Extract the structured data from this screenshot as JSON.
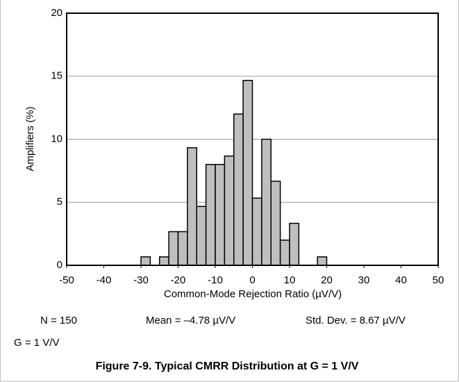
{
  "chart_data": {
    "type": "histogram",
    "title": "Figure 7-9. Typical CMRR Distribution at G = 1 V/V",
    "x_label": "Common-Mode Rejection Ratio (µV/V)",
    "y_label": "Amplifiers (%)",
    "annotations": [
      "N = 150",
      "Mean = –4.78 µV/V",
      "Std. Dev. = 8.67 µV/V",
      "G = 1 V/V"
    ],
    "bins": [
      -30,
      -27.5,
      -25,
      -22.5,
      -20,
      -17.5,
      -15,
      -12.5,
      -10,
      -7.5,
      -5,
      -2.5,
      0,
      2.5,
      5,
      7.5,
      10,
      12.5,
      15,
      17.5,
      20
    ],
    "values": [
      0.67,
      0,
      0.67,
      2.67,
      2.67,
      9.33,
      4.67,
      8,
      8,
      8.67,
      12,
      14.67,
      5.33,
      10,
      6.67,
      2,
      3.33,
      0,
      0,
      0.67
    ],
    "color": "#bfbfbf",
    "xlim": [
      -50,
      50
    ],
    "xticks": [
      -50,
      -40,
      -30,
      -20,
      -10,
      0,
      10,
      20,
      30,
      40,
      50
    ],
    "ylim": [
      0,
      20
    ],
    "yticks": [
      0,
      5,
      10,
      15,
      20
    ],
    "grid": true
  }
}
